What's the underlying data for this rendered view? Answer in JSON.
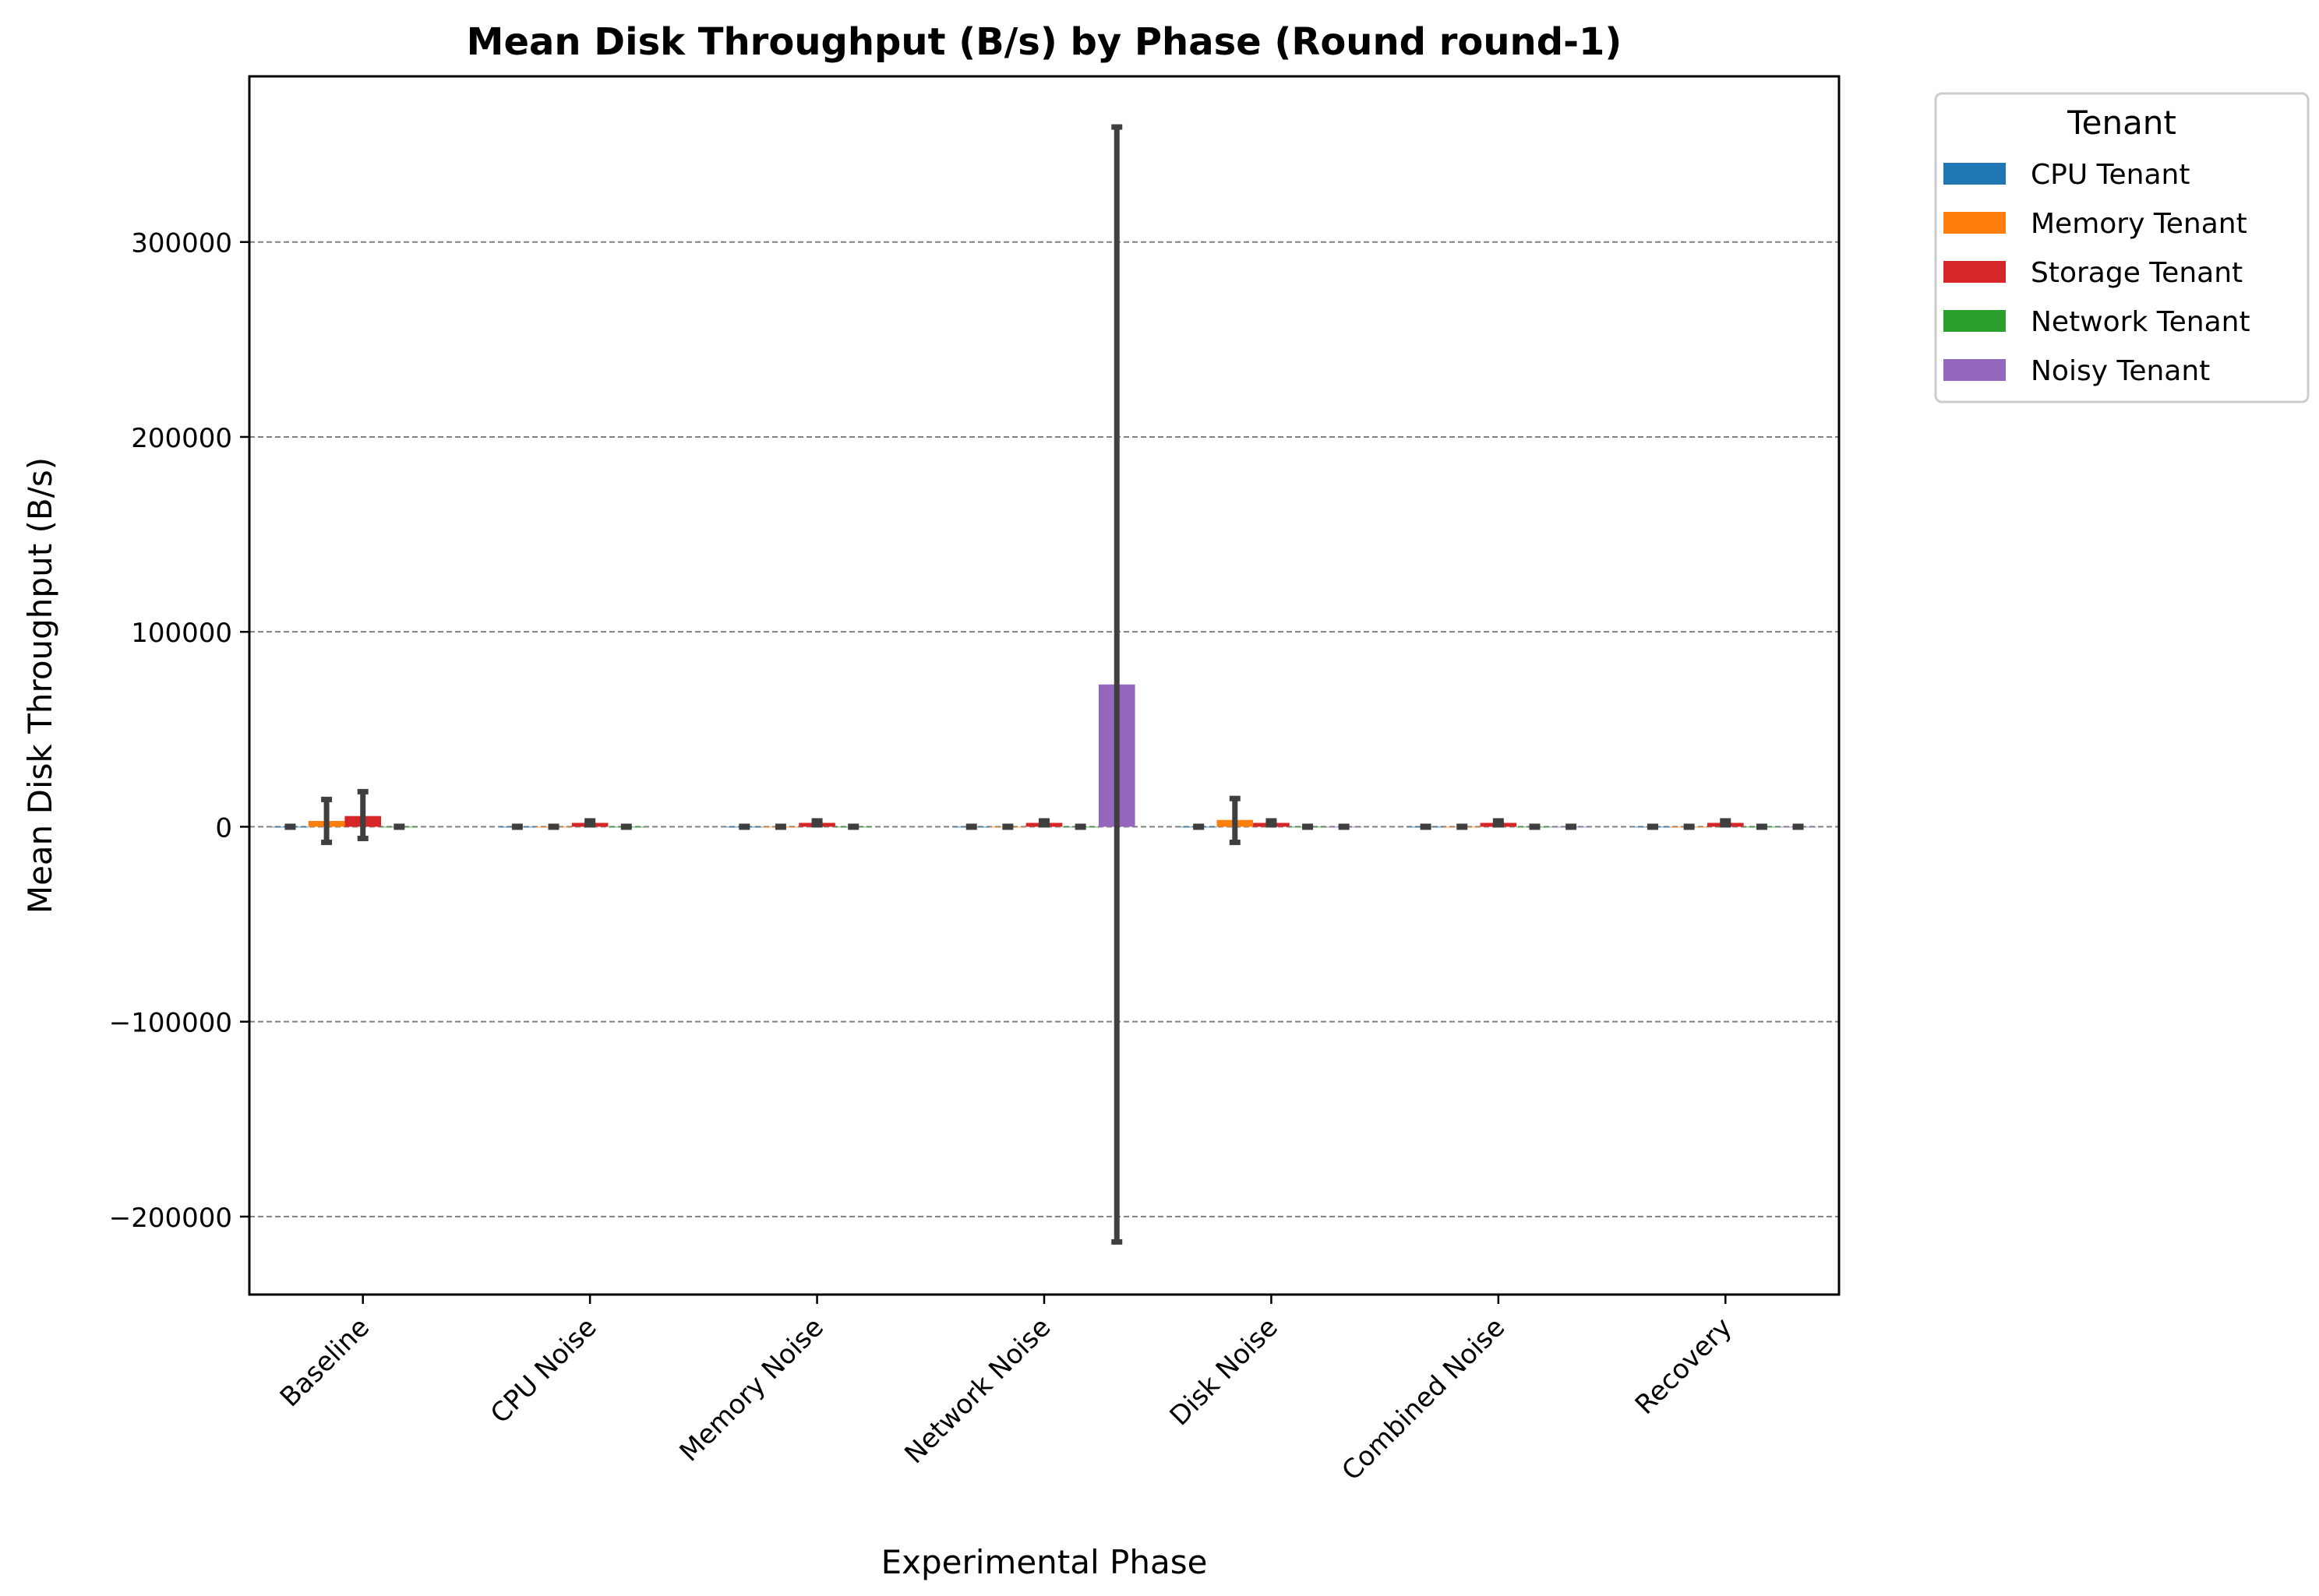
{
  "chart_data": {
    "type": "bar",
    "title": "Mean Disk Throughput (B/s) by Phase (Round round-1)",
    "xlabel": "Experimental Phase",
    "ylabel": "Mean Disk Throughput (B/s)",
    "ylim": [
      -240000,
      385000
    ],
    "yticks": [
      -200000,
      -100000,
      0,
      100000,
      200000,
      300000
    ],
    "ytick_labels": [
      "−200000",
      "−100000",
      "0",
      "100000",
      "200000",
      "300000"
    ],
    "grid": "y",
    "legend": {
      "title": "Tenant",
      "placement": "outside-top-right"
    },
    "categories": [
      "Baseline",
      "CPU Noise",
      "Memory Noise",
      "Network Noise",
      "Disk Noise",
      "Combined Noise",
      "Recovery"
    ],
    "series": [
      {
        "name": "CPU Tenant",
        "color": "#1f77b4",
        "values": [
          0,
          0,
          0,
          0,
          0,
          0,
          0
        ],
        "err_low": [
          0,
          0,
          0,
          0,
          0,
          0,
          0
        ],
        "err_high": [
          0,
          0,
          0,
          0,
          0,
          0,
          0
        ]
      },
      {
        "name": "Memory Tenant",
        "color": "#ff7f0e",
        "values": [
          3000,
          0,
          0,
          0,
          3500,
          0,
          0
        ],
        "err_low": [
          -8000,
          0,
          0,
          0,
          -8000,
          0,
          0
        ],
        "err_high": [
          14000,
          0,
          0,
          0,
          14500,
          0,
          0
        ]
      },
      {
        "name": "Storage Tenant",
        "color": "#d62728",
        "values": [
          5500,
          2000,
          2000,
          2000,
          2000,
          2000,
          2000
        ],
        "err_low": [
          -6000,
          1000,
          1000,
          1000,
          1000,
          1000,
          1000
        ],
        "err_high": [
          18000,
          3000,
          3000,
          3000,
          3000,
          3000,
          3000
        ]
      },
      {
        "name": "Network Tenant",
        "color": "#2ca02c",
        "values": [
          0,
          0,
          0,
          0,
          0,
          0,
          0
        ],
        "err_low": [
          0,
          0,
          0,
          0,
          0,
          0,
          0
        ],
        "err_high": [
          0,
          0,
          0,
          0,
          0,
          0,
          0
        ]
      },
      {
        "name": "Noisy Tenant",
        "color": "#9467bd",
        "values": [
          null,
          null,
          null,
          73000,
          0,
          0,
          0
        ],
        "err_low": [
          null,
          null,
          null,
          -213000,
          0,
          0,
          0
        ],
        "err_high": [
          null,
          null,
          null,
          359000,
          0,
          0,
          0
        ]
      }
    ]
  }
}
